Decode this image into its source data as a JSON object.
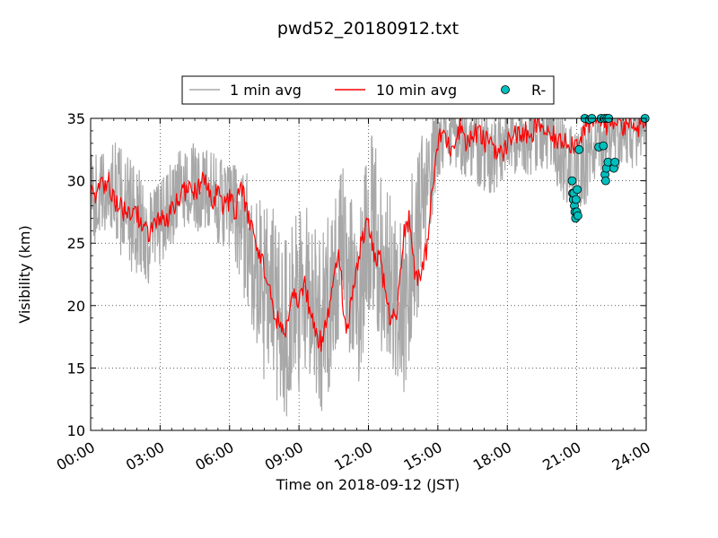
{
  "chart_data": {
    "type": "line",
    "title": "pwd52_20180912.txt",
    "xlabel": "Time on 2018-09-12 (JST)",
    "ylabel": "Visibility (km)",
    "xlim": [
      0,
      24
    ],
    "ylim": [
      10,
      35
    ],
    "xticks": [
      0,
      3,
      6,
      9,
      12,
      15,
      18,
      21,
      24
    ],
    "xtick_labels": [
      "00:00",
      "03:00",
      "06:00",
      "09:00",
      "12:00",
      "15:00",
      "18:00",
      "21:00",
      "24:00"
    ],
    "yticks": [
      10,
      15,
      20,
      25,
      30,
      35
    ],
    "ytick_labels": [
      "10",
      "15",
      "20",
      "25",
      "30",
      "35"
    ],
    "grid": true,
    "legend_position": "top-center",
    "series": [
      {
        "name": "1 min avg",
        "style": "line",
        "color": "#a8a8a8",
        "x": [
          0.0,
          0.5,
          1.0,
          1.5,
          2.0,
          2.5,
          3.0,
          3.5,
          4.0,
          4.5,
          5.0,
          5.5,
          6.0,
          6.5,
          7.0,
          7.5,
          8.0,
          8.5,
          9.0,
          9.5,
          10.0,
          10.5,
          11.0,
          11.5,
          12.0,
          12.5,
          13.0,
          13.5,
          14.0,
          14.5,
          15.0,
          15.5,
          16.0,
          16.5,
          17.0,
          17.5,
          18.0,
          18.5,
          19.0,
          19.5,
          20.0,
          20.5,
          21.0,
          21.5,
          22.0,
          22.5,
          23.0,
          23.5,
          24.0
        ],
        "y": [
          28.5,
          28.8,
          29.5,
          27.5,
          27.0,
          25.5,
          26.5,
          28.0,
          29.5,
          29.5,
          29.0,
          28.5,
          28.0,
          26.5,
          24.0,
          21.0,
          20.0,
          18.5,
          20.0,
          21.5,
          18.0,
          22.5,
          24.5,
          19.5,
          27.0,
          24.0,
          22.0,
          19.0,
          25.0,
          28.5,
          34.0,
          33.5,
          33.5,
          33.0,
          32.5,
          32.0,
          33.5,
          33.0,
          33.5,
          34.0,
          33.0,
          31.5,
          30.0,
          32.0,
          33.5,
          33.5,
          34.0,
          34.0,
          34.5
        ],
        "noise": [
          4.0,
          3.5,
          4.0,
          4.5,
          4.5,
          4.5,
          3.5,
          3.5,
          3.5,
          3.5,
          3.5,
          3.5,
          4.0,
          5.0,
          6.0,
          7.5,
          8.0,
          8.0,
          7.5,
          7.0,
          7.5,
          7.5,
          7.0,
          7.0,
          7.5,
          7.5,
          7.0,
          7.0,
          7.0,
          6.0,
          3.5,
          3.0,
          3.0,
          3.0,
          3.5,
          3.5,
          3.0,
          3.0,
          3.0,
          3.0,
          3.0,
          3.5,
          4.0,
          3.5,
          3.0,
          3.0,
          3.0,
          3.0,
          3.0
        ]
      },
      {
        "name": "10 min avg",
        "style": "line",
        "color": "#ff0000",
        "x": [
          0.0,
          0.25,
          0.5,
          0.75,
          1.0,
          1.25,
          1.5,
          1.75,
          2.0,
          2.25,
          2.5,
          2.75,
          3.0,
          3.25,
          3.5,
          3.75,
          4.0,
          4.25,
          4.5,
          4.75,
          5.0,
          5.25,
          5.5,
          5.75,
          6.0,
          6.25,
          6.5,
          6.75,
          7.0,
          7.25,
          7.5,
          7.75,
          8.0,
          8.25,
          8.5,
          8.75,
          9.0,
          9.25,
          9.5,
          9.75,
          10.0,
          10.25,
          10.5,
          10.75,
          11.0,
          11.25,
          11.5,
          11.75,
          12.0,
          12.25,
          12.5,
          12.75,
          13.0,
          13.25,
          13.5,
          13.75,
          14.0,
          14.25,
          14.5,
          14.75,
          15.0,
          15.25,
          15.5,
          15.75,
          16.0,
          16.25,
          16.5,
          16.75,
          17.0,
          17.25,
          17.5,
          17.75,
          18.0,
          18.25,
          18.5,
          18.75,
          19.0,
          19.25,
          19.5,
          19.75,
          20.0,
          20.25,
          20.5,
          20.75,
          21.0,
          21.25,
          21.5,
          21.75,
          22.0,
          22.25,
          22.5,
          22.75,
          23.0,
          23.25,
          23.5,
          23.75,
          24.0
        ],
        "y": [
          29.0,
          28.8,
          29.5,
          30.2,
          28.5,
          28.0,
          27.5,
          26.8,
          27.5,
          26.0,
          25.8,
          26.5,
          27.0,
          26.5,
          27.5,
          28.5,
          29.0,
          29.8,
          29.0,
          30.0,
          29.5,
          28.5,
          29.0,
          28.0,
          28.5,
          27.5,
          29.5,
          27.5,
          26.0,
          24.5,
          23.0,
          21.0,
          19.0,
          18.0,
          18.5,
          20.5,
          20.5,
          21.5,
          19.5,
          17.5,
          17.0,
          19.0,
          23.0,
          24.0,
          18.0,
          20.0,
          23.0,
          25.5,
          26.5,
          24.0,
          23.5,
          21.0,
          18.5,
          20.0,
          25.5,
          27.0,
          23.0,
          22.0,
          24.5,
          29.0,
          33.0,
          34.0,
          32.5,
          33.5,
          34.5,
          33.0,
          33.5,
          34.0,
          33.0,
          33.5,
          32.5,
          32.0,
          33.0,
          34.0,
          33.5,
          34.0,
          33.0,
          34.5,
          34.5,
          33.5,
          33.5,
          33.0,
          33.5,
          33.0,
          33.0,
          34.0,
          34.5,
          34.8,
          35.0,
          34.5,
          34.8,
          35.0,
          34.5,
          34.8,
          34.0,
          34.5,
          34.5
        ]
      },
      {
        "name": "R-",
        "style": "marker",
        "color": "#00bfbf",
        "x": [
          20.8,
          20.82,
          20.85,
          20.87,
          20.9,
          20.92,
          20.95,
          20.97,
          21.0,
          21.02,
          21.05,
          21.1,
          21.35,
          21.55,
          21.65,
          21.95,
          22.05,
          22.15,
          22.2,
          22.22,
          22.25,
          22.28,
          22.3,
          22.35,
          22.38,
          22.6,
          22.65,
          23.95
        ],
        "y": [
          30.0,
          29.0,
          28.5,
          29.0,
          28.0,
          27.5,
          27.0,
          28.5,
          27.5,
          29.3,
          27.2,
          32.5,
          35.0,
          34.9,
          35.0,
          32.7,
          35.0,
          32.8,
          35.0,
          30.5,
          30.0,
          31.0,
          35.0,
          31.5,
          35.0,
          31.0,
          31.5,
          35.0
        ]
      }
    ]
  }
}
